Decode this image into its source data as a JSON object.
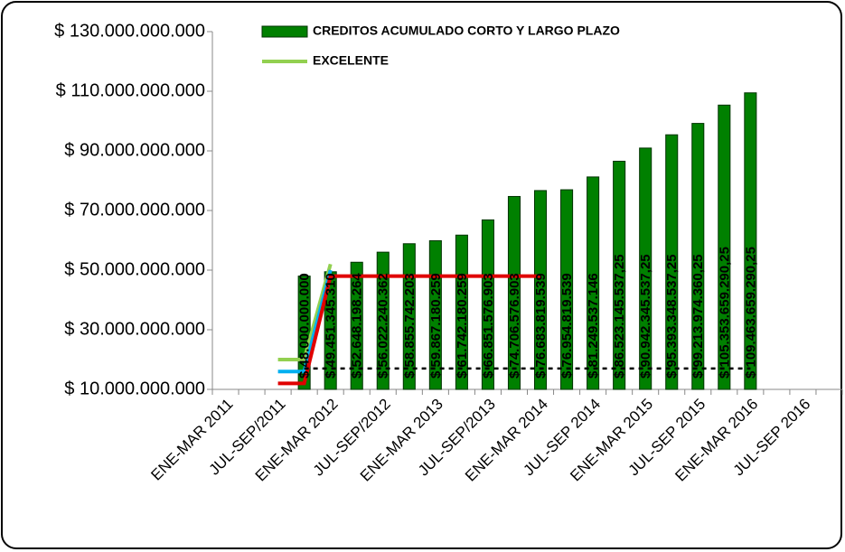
{
  "chart_data": {
    "type": "bar",
    "categories": [
      "ENE-MAR 2011",
      null,
      "JUL-SEP/2011",
      null,
      "ENE-MAR 2012",
      null,
      "JUL-SEP/2012",
      null,
      "ENE-MAR 2013",
      null,
      "JUL-SEP/2013",
      null,
      "ENE-MAR 2014",
      null,
      "JUL-SEP 2014",
      null,
      "ENE-MAR 2015",
      null,
      "JUL-SEP 2015",
      null,
      "ENE-MAR 2016",
      null,
      "JUL-SEP 2016",
      null
    ],
    "ylim": [
      10000000000,
      130000000000
    ],
    "yticks": [
      {
        "value": 10000000000,
        "label": "$ 10.000.000.000"
      },
      {
        "value": 30000000000,
        "label": "$ 30.000.000.000"
      },
      {
        "value": 50000000000,
        "label": "$ 50.000.000.000"
      },
      {
        "value": 70000000000,
        "label": "$ 70.000.000.000"
      },
      {
        "value": 90000000000,
        "label": "$ 90.000.000.000"
      },
      {
        "value": 110000000000,
        "label": "$ 110.000.000.000"
      },
      {
        "value": 130000000000,
        "label": "$ 130.000.000.000"
      }
    ],
    "series": [
      {
        "name": "CREDITOS ACUMULADO CORTO Y LARGO PLAZO",
        "type": "bar",
        "color": "#008000",
        "values": [
          null,
          null,
          null,
          48000000000,
          49451345310,
          52648198264,
          56022240362,
          58855742203,
          59867180259,
          61742180259,
          66851576903,
          74706576903,
          76683819539,
          76954819539,
          81249537146,
          86523145537.25,
          90942345537.25,
          95393348537.25,
          99213974360.25,
          105353659290.25,
          109463659290.25,
          null,
          null,
          null
        ],
        "value_labels": [
          null,
          null,
          null,
          "$ 48.000.000.000",
          "$ 49.451.345.310",
          "$ 52.648.198.264",
          "$ 56.022.240.362",
          "$ 58.855.742.203",
          "$ 59.867.180.259",
          "$ 61.742.180.259",
          "$ 66.851.576.903",
          "$ 74.706.576.903",
          "$ 76.683.819.539",
          "$ 76.954.819.539",
          "$ 81.249.537.146",
          "$ 86.523.145.537,25",
          "$ 90.942.345.537,25",
          "$ 95.393.348.537,25",
          "$ 99.213.974.360,25",
          "$ 105.353.659.290,25",
          "$ 109.463.659.290,25",
          null,
          null,
          null
        ]
      },
      {
        "name": "EXCELENTE",
        "type": "line",
        "color": "#92d050",
        "values": [
          null,
          null,
          20000000000,
          20000000000,
          52000000000,
          null,
          null,
          null,
          null,
          null,
          null,
          null,
          null,
          null,
          null,
          null,
          null,
          null,
          null,
          null,
          null,
          null,
          null,
          null
        ]
      },
      {
        "type": "line",
        "color": "#00b0f0",
        "values": [
          null,
          null,
          16000000000,
          16000000000,
          50000000000,
          null,
          null,
          null,
          null,
          null,
          null,
          null,
          null,
          null,
          null,
          null,
          null,
          null,
          null,
          null,
          null,
          null,
          null,
          null
        ]
      },
      {
        "type": "line",
        "color": "#e00000",
        "values": [
          null,
          null,
          12000000000,
          12000000000,
          48000000000,
          48000000000,
          48000000000,
          48000000000,
          48000000000,
          48000000000,
          48000000000,
          48000000000,
          48000000000,
          null,
          null,
          null,
          null,
          null,
          null,
          null,
          null,
          null,
          null,
          null
        ]
      },
      {
        "type": "line",
        "color": "#000000",
        "dashed": true,
        "values": [
          null,
          null,
          null,
          17000000000,
          17000000000,
          17000000000,
          17000000000,
          17000000000,
          17000000000,
          17000000000,
          17000000000,
          17000000000,
          17000000000,
          17000000000,
          17000000000,
          17000000000,
          17000000000,
          17000000000,
          17000000000,
          17000000000,
          17000000000,
          null,
          null,
          null
        ]
      }
    ]
  }
}
